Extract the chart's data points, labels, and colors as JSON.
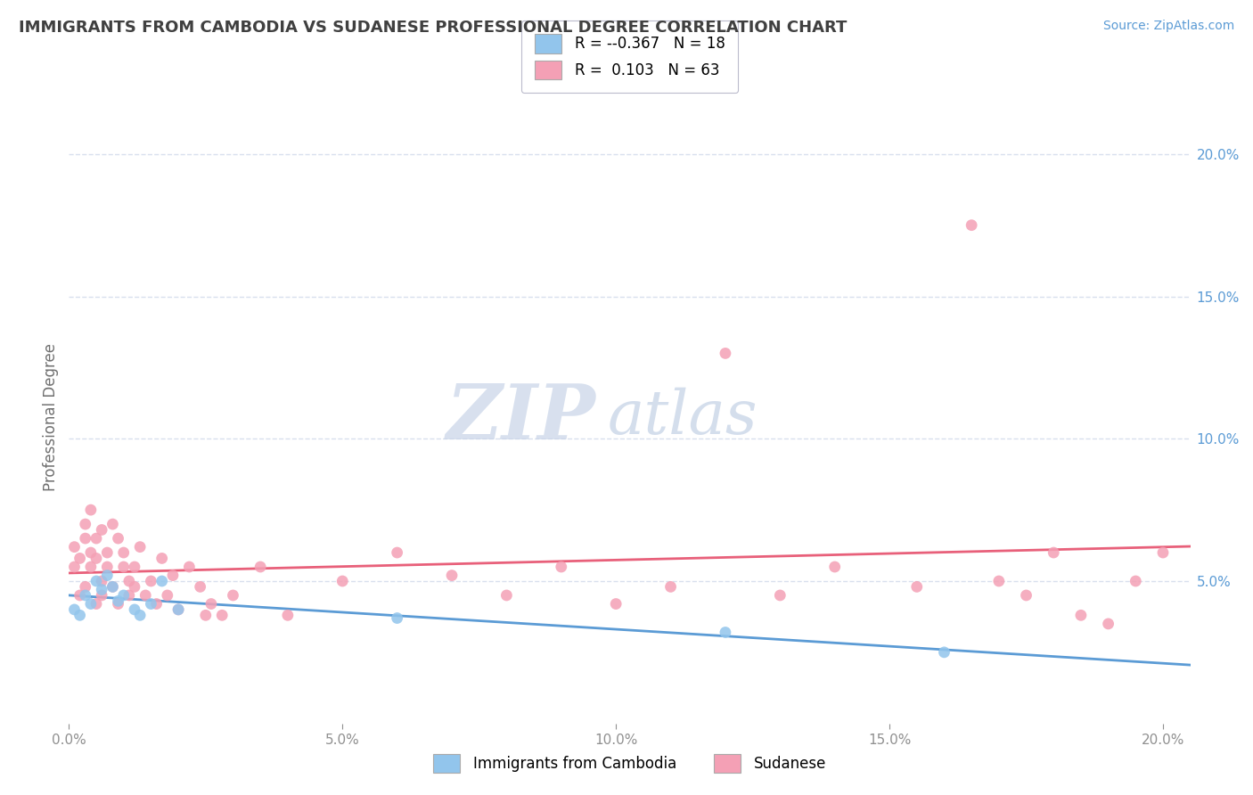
{
  "title": "IMMIGRANTS FROM CAMBODIA VS SUDANESE PROFESSIONAL DEGREE CORRELATION CHART",
  "source_text": "Source: ZipAtlas.com",
  "ylabel": "Professional Degree",
  "xlim": [
    0.0,
    0.205
  ],
  "ylim": [
    0.0,
    0.215
  ],
  "x_tick_labels": [
    "0.0%",
    "5.0%",
    "10.0%",
    "15.0%",
    "20.0%"
  ],
  "x_tick_vals": [
    0.0,
    0.05,
    0.1,
    0.15,
    0.2
  ],
  "y_tick_labels": [
    "5.0%",
    "10.0%",
    "15.0%",
    "20.0%"
  ],
  "y_tick_vals": [
    0.05,
    0.1,
    0.15,
    0.2
  ],
  "color_cambodia": "#92C5EC",
  "color_sudanese": "#F4A0B5",
  "color_line_cambodia": "#5B9BD5",
  "color_line_sudanese": "#E8607A",
  "title_color": "#404040",
  "source_color": "#5B9BD5",
  "axis_label_color": "#707070",
  "tick_color": "#909090",
  "grid_color": "#D8E0EE",
  "background_color": "#FFFFFF",
  "legend_r1": "-0.367",
  "legend_n1": "18",
  "legend_r2": "0.103",
  "legend_n2": "63",
  "cambodia_x": [
    0.001,
    0.002,
    0.003,
    0.004,
    0.005,
    0.006,
    0.007,
    0.008,
    0.009,
    0.01,
    0.012,
    0.013,
    0.015,
    0.017,
    0.02,
    0.06,
    0.12,
    0.16
  ],
  "cambodia_y": [
    0.04,
    0.038,
    0.045,
    0.042,
    0.05,
    0.047,
    0.052,
    0.048,
    0.043,
    0.045,
    0.04,
    0.038,
    0.042,
    0.05,
    0.04,
    0.037,
    0.032,
    0.025
  ],
  "sudanese_x": [
    0.001,
    0.001,
    0.002,
    0.002,
    0.003,
    0.003,
    0.003,
    0.004,
    0.004,
    0.004,
    0.005,
    0.005,
    0.005,
    0.006,
    0.006,
    0.006,
    0.007,
    0.007,
    0.008,
    0.008,
    0.009,
    0.009,
    0.01,
    0.01,
    0.011,
    0.011,
    0.012,
    0.012,
    0.013,
    0.014,
    0.015,
    0.016,
    0.017,
    0.018,
    0.019,
    0.02,
    0.022,
    0.024,
    0.026,
    0.028,
    0.03,
    0.035,
    0.04,
    0.05,
    0.06,
    0.07,
    0.08,
    0.09,
    0.1,
    0.11,
    0.12,
    0.13,
    0.14,
    0.155,
    0.165,
    0.17,
    0.175,
    0.18,
    0.185,
    0.19,
    0.195,
    0.2,
    0.025
  ],
  "sudanese_y": [
    0.055,
    0.062,
    0.045,
    0.058,
    0.048,
    0.065,
    0.07,
    0.055,
    0.06,
    0.075,
    0.042,
    0.058,
    0.065,
    0.05,
    0.045,
    0.068,
    0.055,
    0.06,
    0.048,
    0.07,
    0.042,
    0.065,
    0.055,
    0.06,
    0.05,
    0.045,
    0.055,
    0.048,
    0.062,
    0.045,
    0.05,
    0.042,
    0.058,
    0.045,
    0.052,
    0.04,
    0.055,
    0.048,
    0.042,
    0.038,
    0.045,
    0.055,
    0.038,
    0.05,
    0.06,
    0.052,
    0.045,
    0.055,
    0.042,
    0.048,
    0.13,
    0.045,
    0.055,
    0.048,
    0.175,
    0.05,
    0.045,
    0.06,
    0.038,
    0.035,
    0.05,
    0.06,
    0.038
  ]
}
